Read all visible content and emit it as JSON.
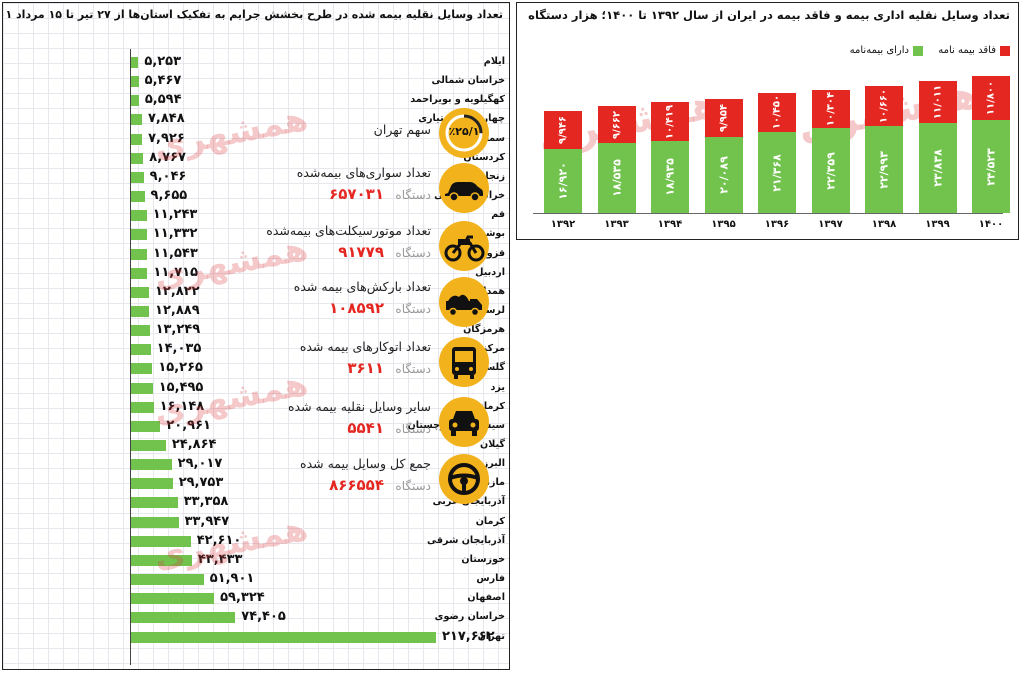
{
  "left_chart": {
    "title": "تعداد وسایل نقلیه بیمه شده در طرح بخشش جرایم به تفکیک استان‌ها از ۲۷ تیر تا ۱۵ مرداد ۱۴۰۱",
    "watermark": "همشهری",
    "stats": [
      {
        "label": "سهم تهران",
        "value": "",
        "unit": "",
        "badge": "٪۲۵/۱",
        "icon": "pie-percent-icon"
      },
      {
        "label": "تعداد سواری‌های بیمه‌شده",
        "value": "۶۵۷۰۳۱",
        "unit": "دستگاه",
        "icon": "car-icon"
      },
      {
        "label": "تعداد موتورسیکلت‌های بیمه‌شده",
        "value": "۹۱۷۷۹",
        "unit": "دستگاه",
        "icon": "motorcycle-icon"
      },
      {
        "label": "تعداد بارکش‌های بیمه شده",
        "value": "۱۰۸۵۹۲",
        "unit": "دستگاه",
        "icon": "truck-icon"
      },
      {
        "label": "تعداد اتوکارهای بیمه شده",
        "value": "۳۶۱۱",
        "unit": "دستگاه",
        "icon": "bus-icon"
      },
      {
        "label": "سایر وسایل نقلیه بیمه شده",
        "value": "۵۵۴۱",
        "unit": "دستگاه",
        "icon": "car-front-icon"
      },
      {
        "label": "جمع کل وسایل بیمه شده",
        "value": "۸۶۶۵۵۴",
        "unit": "دستگاه",
        "icon": "steering-wheel-icon"
      }
    ]
  },
  "right_chart": {
    "title": "تعداد وسایل نقلیه اداری بیمه و فاقد بیمه در ایران از سال ۱۳۹۲ تا ۱۴۰۰؛ هزار دستگاه",
    "watermark": "همشهری",
    "colors": {
      "insured": "#71c34e",
      "uninsured": "#e52722"
    }
  },
  "chart_data": [
    {
      "type": "bar",
      "orientation": "horizontal",
      "title": "تعداد وسایل نقلیه بیمه شده در طرح بخشش جرایم به تفکیک استان‌ها از ۲۷ تیر تا ۱۵ مرداد ۱۴۰۱",
      "categories": [
        "ایلام",
        "خراسان شمالی",
        "کهگیلویه و بویراحمد",
        "چهارمحال بختیاری",
        "سمنان",
        "کردستان",
        "زنجان",
        "خراسان جنوبی",
        "قم",
        "بوشهر",
        "قزوین",
        "اردبیل",
        "همدان",
        "لرستان",
        "هرمزگان",
        "مرکزی",
        "گلستان",
        "یزد",
        "کرمانشاه",
        "سیستان و بلوچستان",
        "گیلان",
        "البرز",
        "مازندران",
        "آذربایجان غربی",
        "کرمان",
        "آذربایجان شرقی",
        "خوزستان",
        "فارس",
        "اصفهان",
        "خراسان رضوی",
        "تهران"
      ],
      "values": [
        5253,
        5467,
        5594,
        7848,
        7926,
        8767,
        9046,
        9655,
        11243,
        11332,
        11543,
        11715,
        12822,
        12889,
        13249,
        14035,
        15265,
        15495,
        16148,
        20961,
        24864,
        29017,
        29753,
        33358,
        33947,
        42610,
        43433,
        51901,
        59324,
        74405,
        217662
      ],
      "value_labels": [
        "۵,۲۵۳",
        "۵,۴۶۷",
        "۵,۵۹۴",
        "۷,۸۴۸",
        "۷,۹۲۶",
        "۸,۷۶۷",
        "۹,۰۴۶",
        "۹,۶۵۵",
        "۱۱,۲۴۳",
        "۱۱,۳۳۲",
        "۱۱,۵۴۳",
        "۱۱,۷۱۵",
        "۱۲,۸۲۲",
        "۱۲,۸۸۹",
        "۱۳,۲۴۹",
        "۱۴,۰۳۵",
        "۱۵,۲۶۵",
        "۱۵,۴۹۵",
        "۱۶,۱۴۸",
        "۲۰,۹۶۱",
        "۲۴,۸۶۴",
        "۲۹,۰۱۷",
        "۲۹,۷۵۳",
        "۳۳,۳۵۸",
        "۳۳,۹۴۷",
        "۴۲,۶۱۰",
        "۴۳,۴۳۳",
        "۵۱,۹۰۱",
        "۵۹,۳۲۴",
        "۷۴,۴۰۵",
        "۲۱۷,۶۶۲"
      ],
      "color": "#71c34e"
    },
    {
      "type": "bar",
      "stacked": true,
      "title": "تعداد وسایل نقلیه اداری بیمه و فاقد بیمه در ایران از سال ۱۳۹۲ تا ۱۴۰۰؛ هزار دستگاه",
      "categories": [
        "۱۳۹۲",
        "۱۳۹۳",
        "۱۳۹۴",
        "۱۳۹۵",
        "۱۳۹۶",
        "۱۳۹۷",
        "۱۳۹۸",
        "۱۳۹۹",
        "۱۴۰۰"
      ],
      "legend_position": "top-right",
      "series": [
        {
          "name": "دارای بیمه‌نامه",
          "color": "#71c34e",
          "values": [
            16.92,
            18.535,
            18.935,
            20.089,
            21.368,
            22.359,
            22.993,
            23.838,
            24.523
          ],
          "labels": [
            "۱۶/۹۲۰",
            "۱۸/۵۳۵",
            "۱۸/۹۳۵",
            "۲۰/۰۸۹",
            "۲۱/۳۶۸",
            "۲۲/۳۵۹",
            "۲۲/۹۹۳",
            "۲۳/۸۳۸",
            "۲۴/۵۲۳"
          ]
        },
        {
          "name": "فاقد بیمه نامه",
          "color": "#e52722",
          "values": [
            9.946,
            9.662,
            10.419,
            9.954,
            10.45,
            10.304,
            10.66,
            11.011,
            11.8
          ],
          "labels": [
            "۹/۹۴۶",
            "۹/۶۶۲",
            "۱۰/۴۱۹",
            "۹/۹۵۴",
            "۱۰/۴۵۰",
            "۱۰/۳۰۴",
            "۱۰/۶۶۰",
            "۱۱/۰۱۱",
            "۱۱/۸۰۰"
          ]
        }
      ]
    }
  ]
}
